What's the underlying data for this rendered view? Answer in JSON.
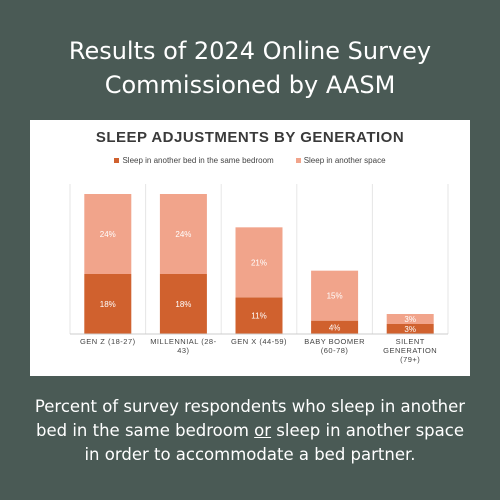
{
  "headline": {
    "line1": "Results of 2024 Online Survey",
    "line2": "Commissioned by AASM"
  },
  "caption": {
    "line1": "Percent of survey respondents who sleep in another",
    "line2_before": "bed in the same bedroom ",
    "line2_or": "or",
    "line2_after": " sleep in another space",
    "line3": "in order to accommodate a bed partner."
  },
  "colors": {
    "background": "#4a5a55",
    "same_bedroom": "#d0612e",
    "another_space": "#f1a48b"
  },
  "chart_data": {
    "type": "bar",
    "stacked": true,
    "title": "SLEEP ADJUSTMENTS BY GENERATION",
    "xlabel": "",
    "ylabel": "",
    "legend_position": "top-center",
    "grid": false,
    "ylim": [
      0,
      45
    ],
    "categories": [
      [
        "GEN Z (18-27)"
      ],
      [
        "MILLENNIAL (28-",
        "43)"
      ],
      [
        "GEN X (44-59)"
      ],
      [
        "BABY BOOMER",
        "(60-78)"
      ],
      [
        "SILENT",
        "GENERATION",
        "(79+)"
      ]
    ],
    "series": [
      {
        "name": "Sleep in another bed in the same bedroom",
        "values": [
          18,
          18,
          11,
          4,
          3
        ],
        "labels": [
          "18%",
          "18%",
          "11%",
          "4%",
          "3%"
        ],
        "color": "#d0612e"
      },
      {
        "name": "Sleep in another space",
        "values": [
          24,
          24,
          21,
          15,
          3
        ],
        "labels": [
          "24%",
          "24%",
          "21%",
          "15%",
          "3%"
        ],
        "color": "#f1a48b"
      }
    ]
  }
}
